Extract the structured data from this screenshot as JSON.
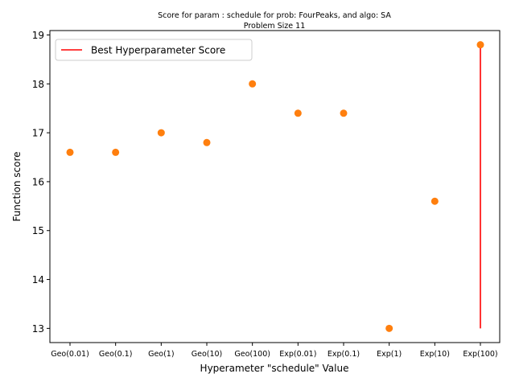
{
  "chart_data": {
    "type": "scatter",
    "title_line1": "Score for param : schedule for prob: FourPeaks, and algo: SA",
    "title_line2": "Problem Size 11",
    "xlabel": "Hyperameter \"schedule\" Value",
    "ylabel": "Function score",
    "categories": [
      "Geo(0.01)",
      "Geo(0.1)",
      "Geo(1)",
      "Geo(10)",
      "Geo(100)",
      "Exp(0.01)",
      "Exp(0.1)",
      "Exp(1)",
      "Exp(10)",
      "Exp(100)"
    ],
    "values": [
      16.6,
      16.6,
      17.0,
      16.8,
      18.0,
      17.4,
      17.4,
      13.0,
      15.6,
      18.8
    ],
    "yticks": [
      13,
      14,
      15,
      16,
      17,
      18,
      19
    ],
    "ylim": [
      12.71,
      19.09
    ],
    "best_line": {
      "category": "Exp(100)",
      "y_from": 13.0,
      "y_to": 18.8
    },
    "legend": {
      "label": "Best Hyperparameter Score",
      "placement": "upper-left"
    },
    "colors": {
      "points": "#ff7f0e",
      "best_line": "#ff0000"
    },
    "grid": false
  }
}
